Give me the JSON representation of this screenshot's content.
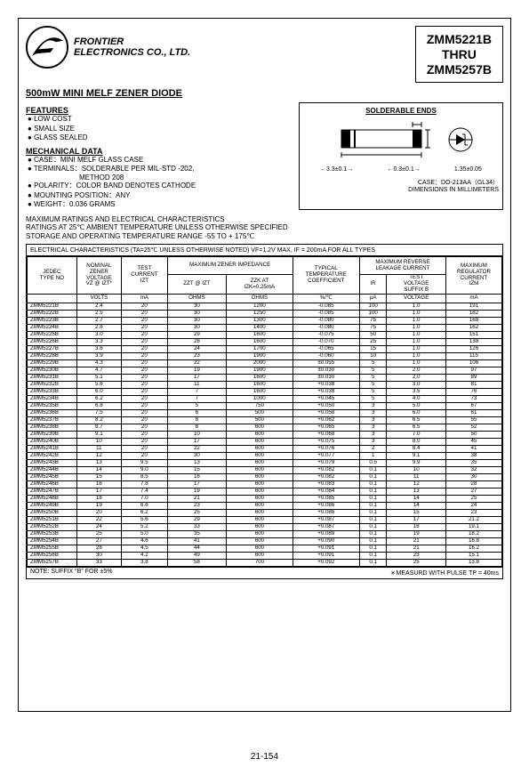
{
  "company": {
    "line1": "FRONTIER",
    "line2": "ELECTRONICS CO., LTD."
  },
  "partbox": {
    "l1": "ZMM5221B",
    "l2": "THRU",
    "l3": "ZMM5257B"
  },
  "title": "500mW MINI MELF ZENER DIODE",
  "features": {
    "head": "FEATURES",
    "b1": "LOW COST",
    "b2": "SMALL SIZE",
    "b3": "GLASS SEALED"
  },
  "mech": {
    "head": "MECHANICAL DATA",
    "b1": "CASE：MINI MELF GLASS CASE",
    "b2": "TERMINALS：SOLDERABLE PER MIL-STD -202,",
    "b2b": "METHOD 208",
    "b3": "POLARITY：COLOR BAND DENOTES CATHODE",
    "b4": "MOUNTING POSITION：ANY",
    "b5": "WEIGHT：0.036 GRAMS"
  },
  "pkg": {
    "ends": "SOLDERABLE ENDS",
    "w": "3.3±0.1",
    "h": "1.35±0.05",
    "cap": "0.3±0.1",
    "case": "CASE：DO-213AA（GL34）",
    "dim": "DIMENSIONS IN MILLIMETERS"
  },
  "ratings": {
    "l1": "MAXIMUM RATINGS AND ELECTRICAL CHARACTERISTICS",
    "l2": "RATINGS AT 25℃ AMBIENT TEMPERATURE UNLESS OTHERWISE SPECIFIED",
    "l3": "STORAGE AND OPERATING TEMPERATURE RANGE -55 TO + 175℃"
  },
  "table": {
    "caption": "ELECTRICAL CHARACTERISTICS (TA=25℃ UNLESS OTHERWISE NOTED) VF=1.2V MAX, IF = 200mA FOR ALL TYPES",
    "h": {
      "jedec": "JEDEC\nTYPE NO",
      "nom": "NOMINAL\nZENER\nVOLTAGE\nVZ @ IZT*",
      "test": "TEST\nCURRENT\nIZT",
      "maximp": "MAXIMUM ZENER IMPEDANCE",
      "zzt": "ZZT @ IZT",
      "zzk": "ZZK AT\nIZK=0.25mA",
      "typ": "TYPICAL\nTEMPERATURE\nCOEFFICIENT",
      "lk": "MAXIMUM REVERSE\nLEAKAGE CURRENT",
      "ir": "IR",
      "tv": "TEST\nVOLTAGE\nSUFFIX B",
      "reg": "MAXIMUM\nREGULATOR\nCURRENT\nIZM"
    },
    "u": {
      "volts": "VOLTS",
      "ma": "mA",
      "ohms": "OHMS",
      "pct": "%/℃",
      "ua": "μA",
      "volt": "VOLTAGE"
    },
    "rows": [
      [
        "ZMM5221B",
        "2.4",
        "20",
        "30",
        "1200",
        "-0.085",
        "100",
        "1.0",
        "191"
      ],
      [
        "ZMM5222B",
        "2.5",
        "20",
        "30",
        "1250",
        "-0.085",
        "100",
        "1.0",
        "182"
      ],
      [
        "ZMM5223B",
        "2.7",
        "20",
        "30",
        "1300",
        "-0.080",
        "75",
        "1.0",
        "168"
      ],
      [
        "ZMM5224B",
        "2.8",
        "20",
        "30",
        "1400",
        "-0.080",
        "75",
        "1.0",
        "162"
      ],
      [
        "ZMM5225B",
        "3.0",
        "20",
        "29",
        "1600",
        "-0.075",
        "50",
        "1.0",
        "151"
      ],
      [
        "ZMM5226B",
        "3.3",
        "20",
        "28",
        "1600",
        "-0.070",
        "25",
        "1.0",
        "138"
      ],
      [
        "ZMM5227B",
        "3.6",
        "20",
        "24",
        "1700",
        "-0.065",
        "15",
        "1.0",
        "126"
      ],
      [
        "ZMM5228B",
        "3.9",
        "20",
        "23",
        "1900",
        "-0.060",
        "10",
        "1.0",
        "115"
      ],
      [
        "ZMM5229B",
        "4.3",
        "20",
        "22",
        "2000",
        "±0.055",
        "5",
        "1.0",
        "106"
      ],
      [
        "ZMM5230B",
        "4.7",
        "20",
        "19",
        "1900",
        "±0.030",
        "5",
        "2.0",
        "97"
      ],
      [
        "ZMM5231B",
        "5.1",
        "20",
        "17",
        "1600",
        "±0.030",
        "5",
        "2.0",
        "89"
      ],
      [
        "ZMM5232B",
        "5.6",
        "20",
        "11",
        "1600",
        "+0.038",
        "5",
        "3.0",
        "81"
      ],
      [
        "ZMM5233B",
        "6.0",
        "20",
        "7",
        "1600",
        "+0.038",
        "5",
        "3.5",
        "76"
      ],
      [
        "ZMM5234B",
        "6.2",
        "20",
        "7",
        "1000",
        "+0.045",
        "5",
        "4.0",
        "73"
      ],
      [
        "ZMM5235B",
        "6.8",
        "20",
        "5",
        "750",
        "+0.050",
        "3",
        "5.0",
        "67"
      ],
      [
        "ZMM5236B",
        "7.5",
        "20",
        "6",
        "500",
        "+0.058",
        "3",
        "6.0",
        "61"
      ],
      [
        "ZMM5237B",
        "8.2",
        "20",
        "8",
        "500",
        "+0.062",
        "3",
        "6.5",
        "55"
      ],
      [
        "ZMM5238B",
        "8.7",
        "20",
        "8",
        "600",
        "+0.065",
        "3",
        "6.5",
        "52"
      ],
      [
        "ZMM5239B",
        "9.1",
        "20",
        "10",
        "600",
        "+0.068",
        "3",
        "7.0",
        "50"
      ],
      [
        "ZMM5240B",
        "10",
        "20",
        "17",
        "600",
        "+0.075",
        "3",
        "8.0",
        "45"
      ],
      [
        "ZMM5241B",
        "11",
        "20",
        "22",
        "600",
        "+0.076",
        "2",
        "8.4",
        "41"
      ],
      [
        "ZMM5242B",
        "12",
        "20",
        "30",
        "600",
        "+0.077",
        "1",
        "9.1",
        "38"
      ],
      [
        "ZMM5243B",
        "13",
        "9.5",
        "13",
        "600",
        "+0.079",
        "0.5",
        "9.9",
        "35"
      ],
      [
        "ZMM5244B",
        "14",
        "9.0",
        "15",
        "600",
        "+0.082",
        "0.1",
        "10",
        "32"
      ],
      [
        "ZMM5245B",
        "15",
        "8.5",
        "16",
        "600",
        "+0.082",
        "0.1",
        "11",
        "30"
      ],
      [
        "ZMM5246B",
        "16",
        "7.8",
        "17",
        "600",
        "+0.083",
        "0.1",
        "12",
        "28"
      ],
      [
        "ZMM5247B",
        "17",
        "7.4",
        "19",
        "600",
        "+0.084",
        "0.1",
        "13",
        "27"
      ],
      [
        "ZMM5248B",
        "18",
        "7.0",
        "21",
        "600",
        "+0.085",
        "0.1",
        "14",
        "25"
      ],
      [
        "ZMM5249B",
        "19",
        "6.6",
        "23",
        "600",
        "+0.086",
        "0.1",
        "14",
        "24"
      ],
      [
        "ZMM5250B",
        "20",
        "6.2",
        "25",
        "600",
        "+0.086",
        "0.1",
        "15",
        "23"
      ],
      [
        "ZMM5251B",
        "22",
        "5.6",
        "29",
        "600",
        "+0.087",
        "0.1",
        "17",
        "21.2"
      ],
      [
        "ZMM5252B",
        "24",
        "5.2",
        "33",
        "600",
        "+0.087",
        "0.1",
        "18",
        "19.1"
      ],
      [
        "ZMM5253B",
        "25",
        "5.0",
        "35",
        "600",
        "+0.089",
        "0.1",
        "19",
        "18.2"
      ],
      [
        "ZMM5254B",
        "27",
        "4.6",
        "41",
        "600",
        "+0.090",
        "0.1",
        "21",
        "16.8"
      ],
      [
        "ZMM5255B",
        "28",
        "4.5",
        "44",
        "600",
        "+0.091",
        "0.1",
        "21",
        "16.2"
      ],
      [
        "ZMM5256B",
        "30",
        "4.2",
        "49",
        "600",
        "+0.091",
        "0.1",
        "23",
        "15.1"
      ],
      [
        "ZMM5257B",
        "33",
        "3.8",
        "58",
        "700",
        "+0.092",
        "0.1",
        "25",
        "13.8"
      ]
    ],
    "note_l": "NOTE: SUFFIX \"B\" FOR ±5%",
    "note_r": "＊MEASURD WITH PULSE TP = 40ms"
  },
  "pagenum": "21-154"
}
